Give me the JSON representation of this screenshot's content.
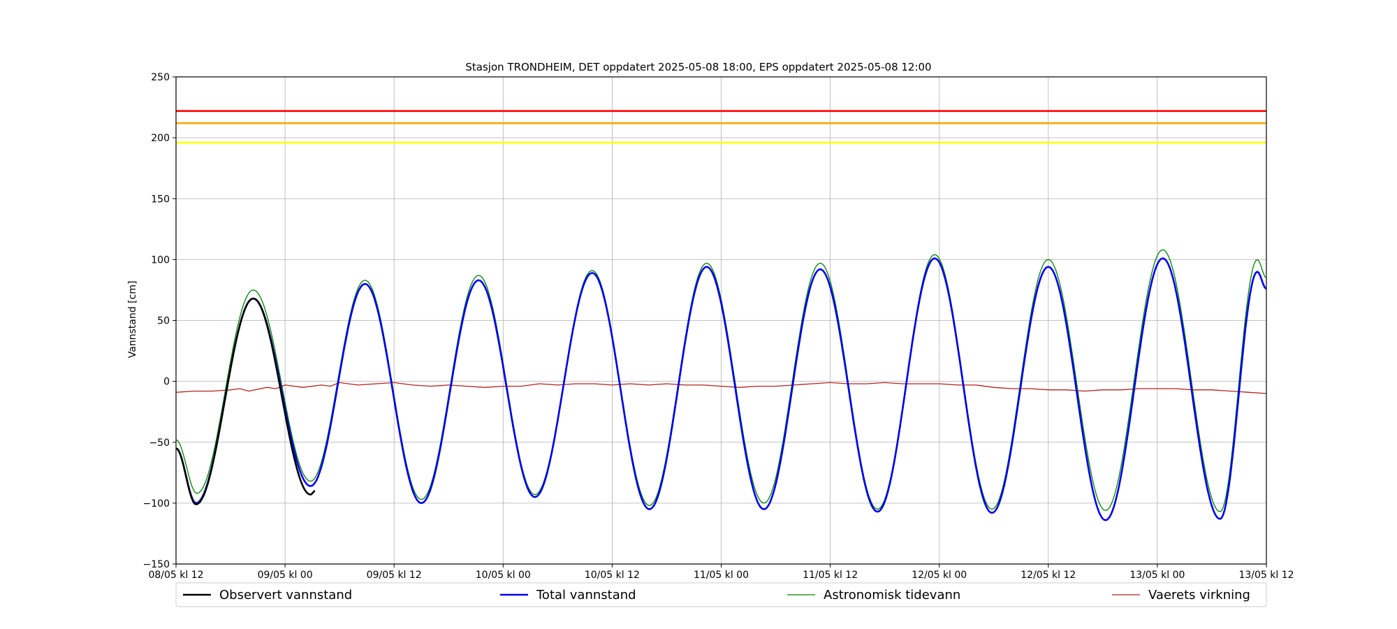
{
  "chart_data": {
    "type": "line",
    "title": "Stasjon TRONDHEIM, DET oppdatert 2025-05-08 18:00, EPS oppdatert 2025-05-08 12:00",
    "ylabel": "Vannstand [cm]",
    "xlabel": "",
    "x_range_hours": [
      0,
      120
    ],
    "ylim": [
      -150,
      250
    ],
    "yticks": [
      -150,
      -100,
      -50,
      0,
      50,
      100,
      150,
      200,
      250
    ],
    "xtick_hours": [
      0,
      12,
      24,
      36,
      48,
      60,
      72,
      84,
      96,
      108,
      120
    ],
    "xtick_labels": [
      "08/05 kl 12",
      "09/05 kl 00",
      "09/05 kl 12",
      "10/05 kl 00",
      "10/05 kl 12",
      "11/05 kl 00",
      "11/05 kl 12",
      "12/05 kl 00",
      "12/05 kl 12",
      "13/05 kl 00",
      "13/05 kl 12"
    ],
    "grid": true,
    "legend_position": "bottom",
    "thresholds": [
      {
        "value": 222,
        "color": "#ff0000"
      },
      {
        "value": 212,
        "color": "#ffa500"
      },
      {
        "value": 196,
        "color": "#ffff00"
      }
    ],
    "series": [
      {
        "name": "Observert vannstand",
        "color": "#000000",
        "width": 2.6,
        "extrema": [
          [
            0,
            -55
          ],
          [
            2.2,
            -101
          ],
          [
            8.5,
            68
          ],
          [
            14.8,
            -93
          ],
          [
            15.3,
            -90
          ]
        ]
      },
      {
        "name": "Total vannstand",
        "color": "#0000ee",
        "width": 2.6,
        "extrema": [
          [
            0,
            -55
          ],
          [
            2.2,
            -100
          ],
          [
            8.5,
            68
          ],
          [
            14.8,
            -86
          ],
          [
            20.8,
            80
          ],
          [
            27.0,
            -100
          ],
          [
            33.3,
            83
          ],
          [
            39.5,
            -95
          ],
          [
            45.8,
            89
          ],
          [
            52.1,
            -105
          ],
          [
            58.4,
            94
          ],
          [
            64.7,
            -105
          ],
          [
            70.9,
            92
          ],
          [
            77.2,
            -107
          ],
          [
            83.5,
            101
          ],
          [
            89.8,
            -108
          ],
          [
            96.0,
            94
          ],
          [
            102.3,
            -114
          ],
          [
            108.6,
            101
          ],
          [
            114.9,
            -113
          ],
          [
            119.0,
            90
          ],
          [
            120.0,
            76
          ]
        ]
      },
      {
        "name": "Astronomisk tidevann",
        "color": "#008000",
        "width": 1.3,
        "extrema": [
          [
            0,
            -48
          ],
          [
            2.3,
            -92
          ],
          [
            8.5,
            75
          ],
          [
            14.8,
            -82
          ],
          [
            20.8,
            83
          ],
          [
            27.0,
            -97
          ],
          [
            33.3,
            87
          ],
          [
            39.5,
            -93
          ],
          [
            45.8,
            91
          ],
          [
            52.1,
            -102
          ],
          [
            58.4,
            97
          ],
          [
            64.7,
            -100
          ],
          [
            70.9,
            97
          ],
          [
            77.2,
            -105
          ],
          [
            83.5,
            104
          ],
          [
            89.8,
            -105
          ],
          [
            96.0,
            100
          ],
          [
            102.3,
            -106
          ],
          [
            108.6,
            108
          ],
          [
            114.9,
            -107
          ],
          [
            119.0,
            100
          ],
          [
            120.0,
            85
          ]
        ]
      },
      {
        "name": "Vaerets virkning",
        "color": "#b22222",
        "width": 1.3,
        "points": [
          [
            0,
            -9
          ],
          [
            2,
            -8
          ],
          [
            4,
            -8
          ],
          [
            6,
            -7
          ],
          [
            7,
            -6
          ],
          [
            8,
            -8
          ],
          [
            10,
            -5
          ],
          [
            11,
            -6
          ],
          [
            12,
            -3
          ],
          [
            14,
            -5
          ],
          [
            16,
            -3
          ],
          [
            17,
            -4
          ],
          [
            18,
            -1
          ],
          [
            20,
            -3
          ],
          [
            22,
            -2
          ],
          [
            24,
            -1
          ],
          [
            26,
            -3
          ],
          [
            28,
            -4
          ],
          [
            30,
            -3
          ],
          [
            32,
            -4
          ],
          [
            34,
            -5
          ],
          [
            36,
            -4
          ],
          [
            38,
            -4
          ],
          [
            40,
            -2
          ],
          [
            42,
            -3
          ],
          [
            44,
            -2
          ],
          [
            46,
            -2
          ],
          [
            48,
            -3
          ],
          [
            50,
            -2
          ],
          [
            52,
            -3
          ],
          [
            54,
            -2
          ],
          [
            56,
            -3
          ],
          [
            58,
            -3
          ],
          [
            60,
            -4
          ],
          [
            62,
            -5
          ],
          [
            64,
            -4
          ],
          [
            66,
            -4
          ],
          [
            68,
            -3
          ],
          [
            70,
            -2
          ],
          [
            72,
            -1
          ],
          [
            74,
            -2
          ],
          [
            76,
            -2
          ],
          [
            78,
            -1
          ],
          [
            80,
            -2
          ],
          [
            82,
            -2
          ],
          [
            84,
            -2
          ],
          [
            86,
            -3
          ],
          [
            88,
            -3
          ],
          [
            90,
            -5
          ],
          [
            92,
            -6
          ],
          [
            94,
            -6
          ],
          [
            96,
            -7
          ],
          [
            98,
            -7
          ],
          [
            100,
            -8
          ],
          [
            102,
            -7
          ],
          [
            104,
            -7
          ],
          [
            106,
            -6
          ],
          [
            108,
            -6
          ],
          [
            110,
            -6
          ],
          [
            112,
            -7
          ],
          [
            114,
            -7
          ],
          [
            116,
            -8
          ],
          [
            118,
            -9
          ],
          [
            120,
            -10
          ]
        ]
      }
    ]
  }
}
